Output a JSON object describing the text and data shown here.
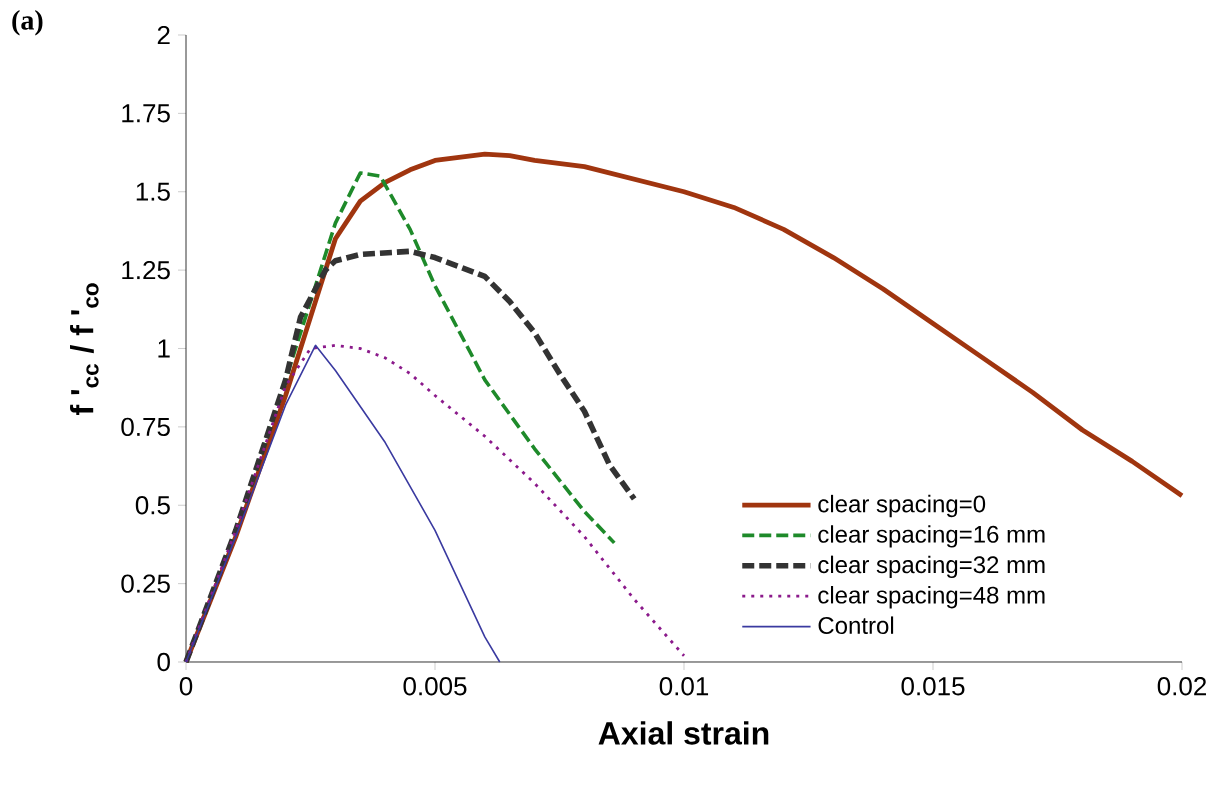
{
  "chart_data": {
    "type": "line",
    "title": "(a)",
    "xlabel": "Axial strain",
    "ylabel": "f '$_{cc}$ / f '$_{co}$",
    "xlim": [
      0,
      0.02
    ],
    "ylim": [
      0,
      2
    ],
    "xticks": [
      0,
      0.005,
      0.01,
      0.015,
      0.02
    ],
    "yticks": [
      0,
      0.25,
      0.5,
      0.75,
      1,
      1.25,
      1.5,
      1.75,
      2
    ],
    "grid": false,
    "legend": "bottom right",
    "series": [
      {
        "name": "clear spacing=0",
        "color": "#a0350f",
        "line_style": "solid",
        "x": [
          0,
          0.001,
          0.002,
          0.0025,
          0.003,
          0.0035,
          0.004,
          0.0045,
          0.005,
          0.006,
          0.0065,
          0.007,
          0.008,
          0.009,
          0.01,
          0.011,
          0.012,
          0.013,
          0.014,
          0.015,
          0.016,
          0.017,
          0.018,
          0.019,
          0.02
        ],
        "values": [
          0,
          0.4,
          0.85,
          1.1,
          1.35,
          1.47,
          1.53,
          1.57,
          1.6,
          1.62,
          1.615,
          1.6,
          1.58,
          1.54,
          1.5,
          1.45,
          1.38,
          1.29,
          1.19,
          1.08,
          0.97,
          0.86,
          0.74,
          0.64,
          0.53
        ]
      },
      {
        "name": "clear spacing=16 mm",
        "color": "#1e8a2a",
        "line_style": "dashed",
        "x": [
          0,
          0.001,
          0.002,
          0.0025,
          0.003,
          0.0035,
          0.0039,
          0.0045,
          0.005,
          0.006,
          0.007,
          0.008,
          0.0086
        ],
        "values": [
          0,
          0.42,
          0.9,
          1.15,
          1.4,
          1.56,
          1.55,
          1.38,
          1.2,
          0.9,
          0.68,
          0.48,
          0.38
        ]
      },
      {
        "name": "clear spacing=32 mm",
        "color": "#333333",
        "line_style": "dashed",
        "x": [
          0,
          0.001,
          0.002,
          0.0023,
          0.0028,
          0.003,
          0.0035,
          0.0045,
          0.005,
          0.006,
          0.0065,
          0.007,
          0.0075,
          0.008,
          0.0085,
          0.009
        ],
        "values": [
          0,
          0.42,
          0.9,
          1.1,
          1.25,
          1.28,
          1.3,
          1.31,
          1.29,
          1.23,
          1.15,
          1.05,
          0.92,
          0.8,
          0.63,
          0.52
        ]
      },
      {
        "name": "clear spacing=48 mm",
        "color": "#8b1a8b",
        "line_style": "dotted",
        "x": [
          0,
          0.001,
          0.002,
          0.0025,
          0.003,
          0.0035,
          0.004,
          0.0045,
          0.005,
          0.006,
          0.007,
          0.008,
          0.009,
          0.01
        ],
        "values": [
          0,
          0.42,
          0.88,
          1.0,
          1.01,
          1.0,
          0.97,
          0.92,
          0.85,
          0.72,
          0.57,
          0.4,
          0.2,
          0.02
        ]
      },
      {
        "name": "Control",
        "color": "#3a3aa0",
        "line_style": "solid",
        "x": [
          0,
          0.001,
          0.002,
          0.0026,
          0.003,
          0.004,
          0.005,
          0.006,
          0.0063
        ],
        "values": [
          0,
          0.4,
          0.82,
          1.01,
          0.93,
          0.7,
          0.42,
          0.08,
          0
        ]
      }
    ]
  }
}
